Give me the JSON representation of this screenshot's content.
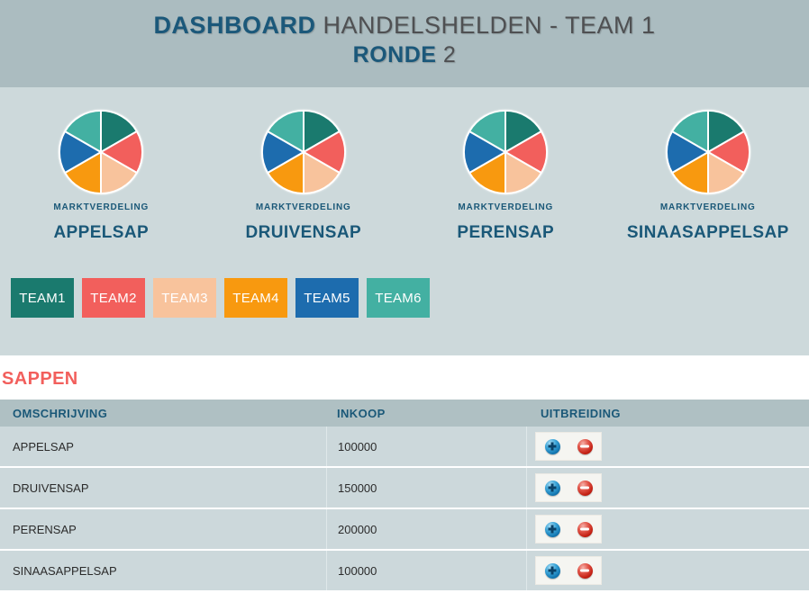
{
  "header": {
    "title_strong": "DASHBOARD",
    "title_rest": " HANDELSHELDEN - TEAM 1",
    "subtitle_strong": "RONDE",
    "subtitle_rest": " 2"
  },
  "market": {
    "label": "MARKTVERDELING",
    "products": [
      "APPELSAP",
      "DRUIVENSAP",
      "PERENSAP",
      "SINAASAPPELSAP"
    ]
  },
  "teams": [
    {
      "label": "TEAM1",
      "color": "#1a7a6e"
    },
    {
      "label": "TEAM2",
      "color": "#f25f5c"
    },
    {
      "label": "TEAM3",
      "color": "#f8c39c"
    },
    {
      "label": "TEAM4",
      "color": "#f8990f"
    },
    {
      "label": "TEAM5",
      "color": "#1d6cae"
    },
    {
      "label": "TEAM6",
      "color": "#43b0a2"
    }
  ],
  "chart_data": [
    {
      "type": "pie",
      "title": "MARKTVERDELING APPELSAP",
      "labels": [
        "TEAM1",
        "TEAM2",
        "TEAM3",
        "TEAM4",
        "TEAM5",
        "TEAM6"
      ],
      "values": [
        16.7,
        16.7,
        16.7,
        16.7,
        16.7,
        16.7
      ],
      "colors": [
        "#1a7a6e",
        "#f25f5c",
        "#f8c39c",
        "#f8990f",
        "#1d6cae",
        "#43b0a2"
      ],
      "legend_position": "none",
      "note": "six equal slices, starts at 12 o'clock, clockwise"
    },
    {
      "type": "pie",
      "title": "MARKTVERDELING DRUIVENSAP",
      "labels": [
        "TEAM1",
        "TEAM2",
        "TEAM3",
        "TEAM4",
        "TEAM5",
        "TEAM6"
      ],
      "values": [
        16.7,
        16.7,
        16.7,
        16.7,
        16.7,
        16.7
      ],
      "colors": [
        "#1a7a6e",
        "#f25f5c",
        "#f8c39c",
        "#f8990f",
        "#1d6cae",
        "#43b0a2"
      ],
      "legend_position": "none",
      "note": "six equal slices, starts at 12 o'clock, clockwise"
    },
    {
      "type": "pie",
      "title": "MARKTVERDELING PERENSAP",
      "labels": [
        "TEAM1",
        "TEAM2",
        "TEAM3",
        "TEAM4",
        "TEAM5",
        "TEAM6"
      ],
      "values": [
        16.7,
        16.7,
        16.7,
        16.7,
        16.7,
        16.7
      ],
      "colors": [
        "#1a7a6e",
        "#f25f5c",
        "#f8c39c",
        "#f8990f",
        "#1d6cae",
        "#43b0a2"
      ],
      "legend_position": "none",
      "note": "six equal slices, starts at 12 o'clock, clockwise"
    },
    {
      "type": "pie",
      "title": "MARKTVERDELING SINAASAPPELSAP",
      "labels": [
        "TEAM1",
        "TEAM2",
        "TEAM3",
        "TEAM4",
        "TEAM5",
        "TEAM6"
      ],
      "values": [
        16.7,
        16.7,
        16.7,
        16.7,
        16.7,
        16.7
      ],
      "colors": [
        "#1a7a6e",
        "#f25f5c",
        "#f8c39c",
        "#f8990f",
        "#1d6cae",
        "#43b0a2"
      ],
      "legend_position": "none",
      "note": "six equal slices, starts at 12 o'clock, clockwise"
    }
  ],
  "table": {
    "title": "SAPPEN",
    "columns": [
      "OMSCHRIJVING",
      "INKOOP",
      "UITBREIDING"
    ],
    "rows": [
      {
        "omschrijving": "APPELSAP",
        "inkoop": "100000"
      },
      {
        "omschrijving": "DRUIVENSAP",
        "inkoop": "150000"
      },
      {
        "omschrijving": "PERENSAP",
        "inkoop": "200000"
      },
      {
        "omschrijving": "SINAASAPPELSAP",
        "inkoop": "100000"
      }
    ],
    "action_icons": {
      "increase": "add-icon",
      "decrease": "remove-icon"
    }
  },
  "colors": {
    "page_header_bg": "#abbcc0",
    "content_bg": "#cdd9db",
    "table_header_bg": "#afc0c3",
    "row_bg": "#ccd8db",
    "heading_blue": "#1a5878",
    "heading_gray": "#4f5052",
    "accent_red": "#f25f5c"
  }
}
